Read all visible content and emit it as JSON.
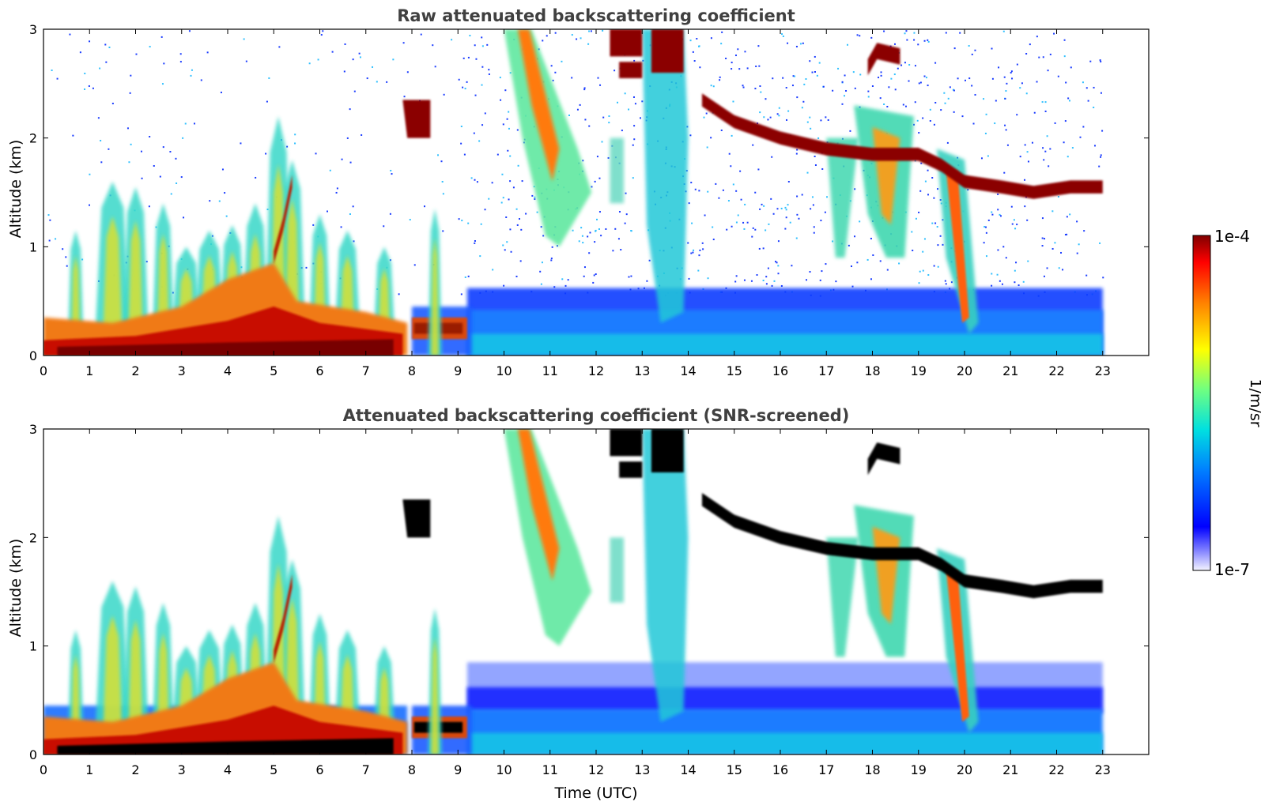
{
  "figure": {
    "xlabel": "Time (UTC)",
    "colorbar": {
      "label": "1/m/sr",
      "max_label": "1e-4",
      "min_label": "1e-7",
      "scale": "log",
      "range": [
        1e-07,
        0.0001
      ],
      "colormap": "jet"
    }
  },
  "chart_data": [
    {
      "type": "heatmap",
      "title": "Raw attenuated backscattering coefficient",
      "xlabel": "",
      "ylabel": "Altitude (km)",
      "xlim": [
        0,
        24
      ],
      "ylim": [
        0,
        3
      ],
      "xticks": [
        "0",
        "1",
        "2",
        "3",
        "4",
        "5",
        "6",
        "7",
        "8",
        "9",
        "10",
        "11",
        "12",
        "13",
        "14",
        "15",
        "16",
        "17",
        "18",
        "19",
        "20",
        "21",
        "22",
        "23"
      ],
      "yticks": [
        "0",
        "1",
        "2",
        "3"
      ],
      "data_end_hour": 23,
      "grid": false,
      "background_noise": "speckled blue returns above the boundary layer, sparse before 9 UTC",
      "features": [
        {
          "name": "boundary layer aerosol",
          "x": [
            0,
            7.9
          ],
          "y": [
            0,
            0.45
          ],
          "level": "high"
        },
        {
          "name": "aerosol plumes",
          "x": [
            1.3,
            7.6
          ],
          "y": [
            0,
            2.0
          ],
          "level": "medium-high"
        },
        {
          "name": "aerosol layer",
          "x": [
            7.9,
            9.2
          ],
          "y": [
            0.15,
            0.35
          ],
          "level": "high"
        },
        {
          "name": "mixed layer",
          "x": [
            9.2,
            23
          ],
          "y": [
            0,
            0.55
          ],
          "level": "low-medium"
        },
        {
          "name": "cloud",
          "x": [
            7.8,
            8.4
          ],
          "y": [
            2.0,
            2.3
          ],
          "level": "max"
        },
        {
          "name": "fall streak",
          "x": [
            10.2,
            11.8
          ],
          "y": [
            1.1,
            3.0
          ],
          "level": "medium-high"
        },
        {
          "name": "cloud",
          "x": [
            12.3,
            14.2
          ],
          "y": [
            2.5,
            3.0
          ],
          "level": "max"
        },
        {
          "name": "cloud layer",
          "x": [
            14.3,
            23
          ],
          "y": [
            1.4,
            2.4
          ],
          "level": "max"
        },
        {
          "name": "virga",
          "x": [
            17.0,
            20.3
          ],
          "y": [
            0.2,
            2.0
          ],
          "level": "medium-high"
        }
      ]
    },
    {
      "type": "heatmap",
      "title": "Attenuated backscattering coefficient (SNR-screened)",
      "xlabel": "Time (UTC)",
      "ylabel": "Altitude (km)",
      "xlim": [
        0,
        24
      ],
      "ylim": [
        0,
        3
      ],
      "xticks": [
        "0",
        "1",
        "2",
        "3",
        "4",
        "5",
        "6",
        "7",
        "8",
        "9",
        "10",
        "11",
        "12",
        "13",
        "14",
        "15",
        "16",
        "17",
        "18",
        "19",
        "20",
        "21",
        "22",
        "23"
      ],
      "yticks": [
        "0",
        "1",
        "2",
        "3"
      ],
      "data_end_hour": 23,
      "grid": false,
      "background_noise": "removed (low SNR pixels screened to white)",
      "saturated_color": "#000000"
    }
  ]
}
